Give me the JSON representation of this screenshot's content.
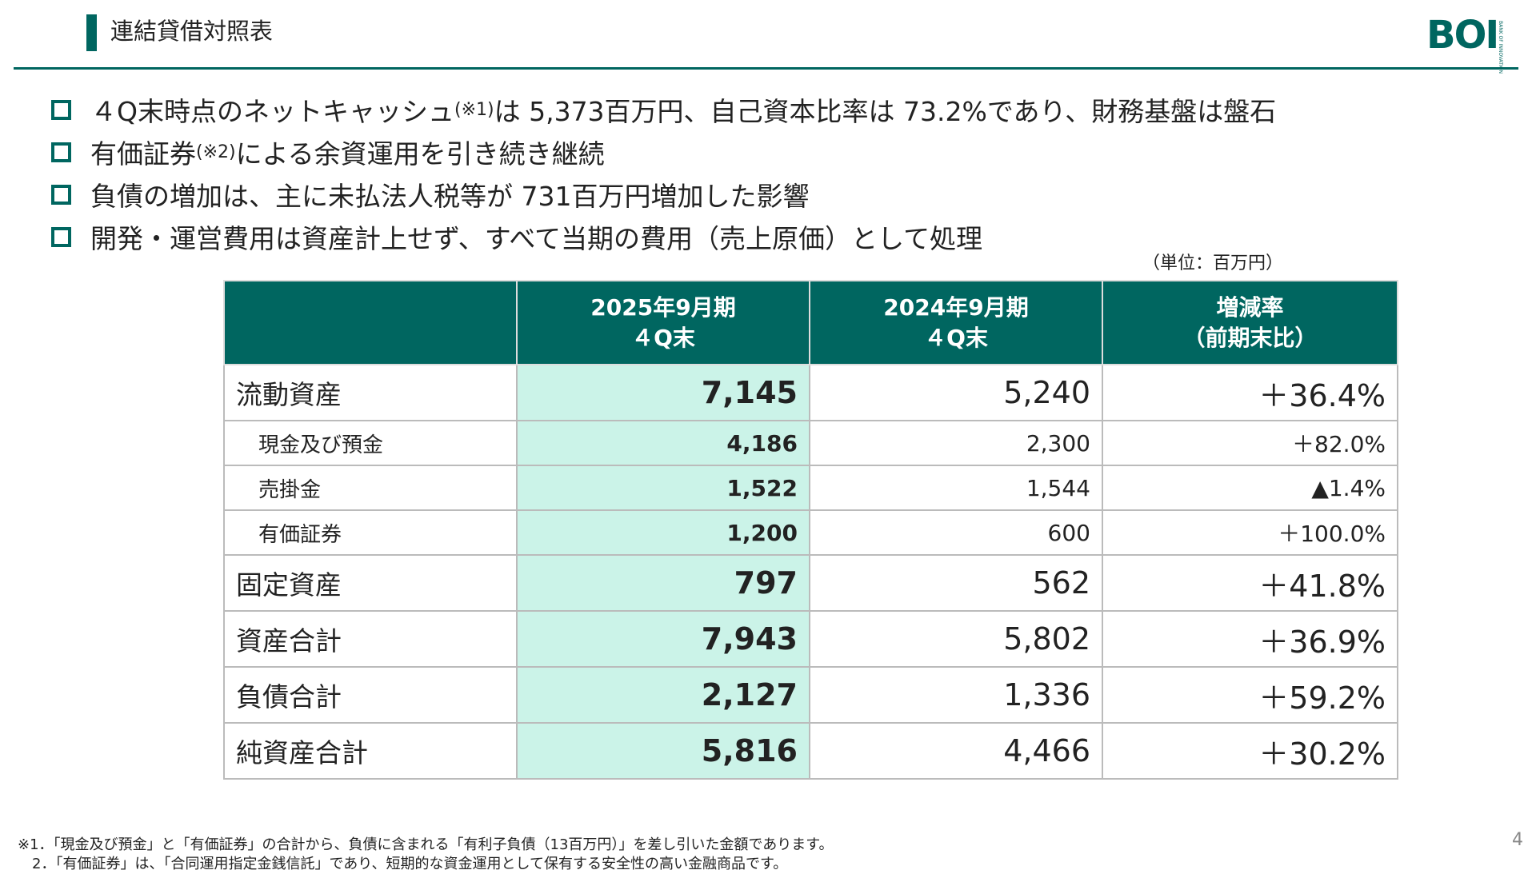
{
  "header": {
    "title": "連結貸借対照表",
    "logo": "BOI",
    "logo_sub": [
      "BANK OF",
      "INNOVATION"
    ]
  },
  "bullets": [
    {
      "before": "４Q末時点のネットキャッシュ",
      "note": "(※1)",
      "after": "は 5,373百万円、自己資本比率は 73.2%であり、財務基盤は盤石"
    },
    {
      "before": "有価証券",
      "note": "(※2)",
      "after": "による余資運用を引き続き継続"
    },
    {
      "before": "負債の増加は、主に未払法人税等が 731百万円増加した影響"
    },
    {
      "before": "開発・運営費用は資産計上せず、すべて当期の費用（売上原価）として処理"
    }
  ],
  "unit": "（単位：百万円）",
  "table": {
    "columns": [
      [
        "2025年9月期",
        "４Q末"
      ],
      [
        "2024年9月期",
        "４Q末"
      ],
      [
        "増減率",
        "（前期末比）"
      ]
    ],
    "rows": [
      {
        "label": "流動資産",
        "cells": [
          "7,145",
          "5,240",
          "＋36.4%"
        ]
      },
      {
        "label": "現金及び預金",
        "cells": [
          "4,186",
          "2,300",
          "＋82.0%"
        ],
        "sub": true
      },
      {
        "label": "売掛金",
        "cells": [
          "1,522",
          "1,544",
          "▲1.4%"
        ],
        "sub": true
      },
      {
        "label": "有価証券",
        "cells": [
          "1,200",
          "600",
          "＋100.0%"
        ],
        "sub": true
      },
      {
        "label": "固定資産",
        "cells": [
          "797",
          "562",
          "＋41.8%"
        ]
      },
      {
        "label": "資産合計",
        "cells": [
          "7,943",
          "5,802",
          "＋36.9%"
        ]
      },
      {
        "label": "負債合計",
        "cells": [
          "2,127",
          "1,336",
          "＋59.2%"
        ]
      },
      {
        "label": "純資産合計",
        "cells": [
          "5,816",
          "4,466",
          "＋30.2%"
        ]
      }
    ]
  },
  "footnotes": [
    "※1．「現金及び預金」と「有価証券」の合計から、負債に含まれる「有利子負債（13百万円）」を差し引いた金額であります。",
    "　2．「有価証券」は、「合同運用指定金銭信託」であり、短期的な資金運用として保有する安全性の高い金融商品です。"
  ],
  "page_number": "4"
}
